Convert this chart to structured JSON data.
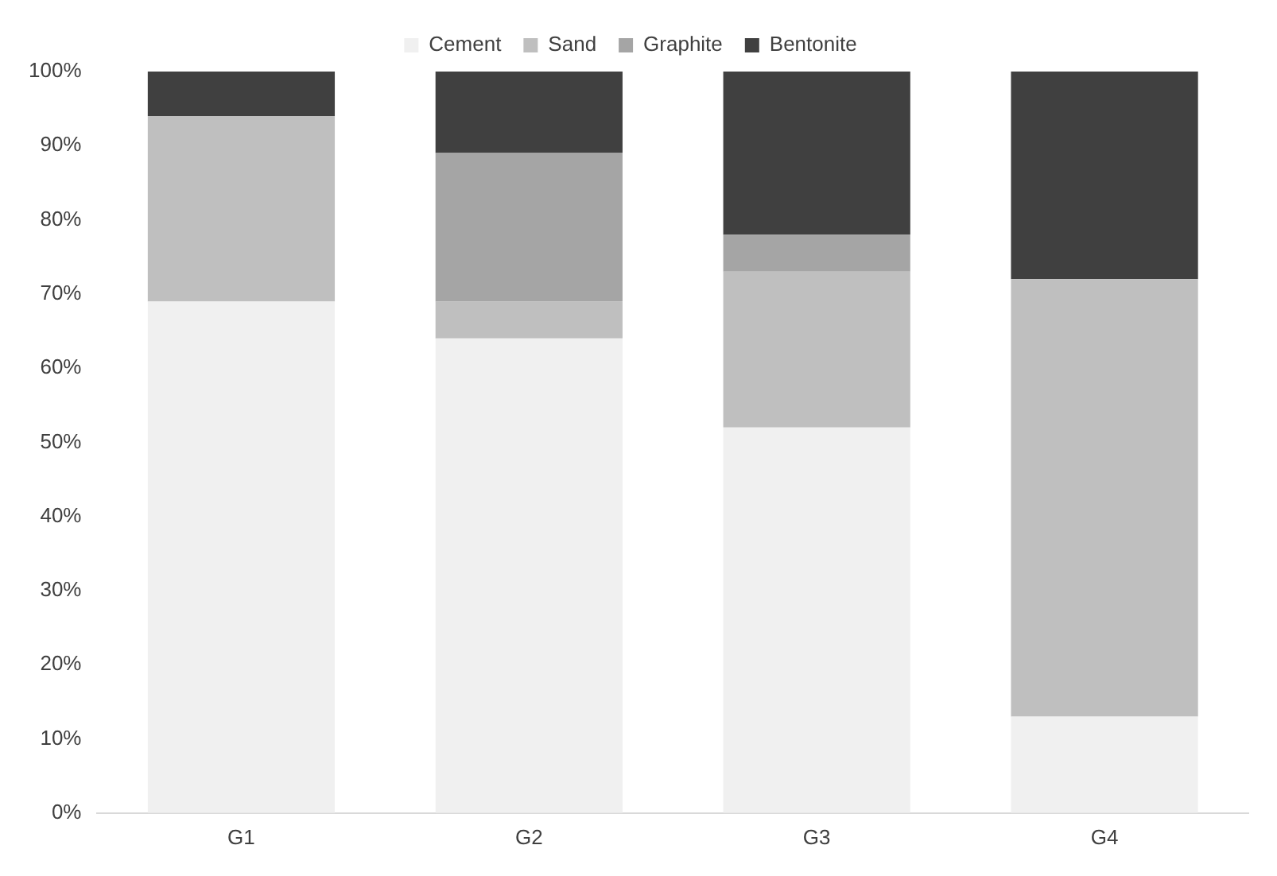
{
  "chart_data": {
    "type": "bar",
    "stacked": true,
    "categories": [
      "G1",
      "G2",
      "G3",
      "G4"
    ],
    "series": [
      {
        "name": "Cement",
        "color": "#f0f0f0",
        "values": [
          69,
          64,
          52,
          13
        ]
      },
      {
        "name": "Sand",
        "color": "#bfbfbf",
        "values": [
          25,
          5,
          21,
          59
        ]
      },
      {
        "name": "Graphite",
        "color": "#a5a5a5",
        "values": [
          0,
          20,
          5,
          0
        ]
      },
      {
        "name": "Bentonite",
        "color": "#404040",
        "values": [
          6,
          11,
          22,
          28
        ]
      }
    ],
    "ylim": [
      0,
      100
    ],
    "yticks": [
      {
        "value": 0,
        "label": "0%"
      },
      {
        "value": 10,
        "label": "10%"
      },
      {
        "value": 20,
        "label": "20%"
      },
      {
        "value": 30,
        "label": "30%"
      },
      {
        "value": 40,
        "label": "40%"
      },
      {
        "value": 50,
        "label": "50%"
      },
      {
        "value": 60,
        "label": "60%"
      },
      {
        "value": 70,
        "label": "70%"
      },
      {
        "value": 80,
        "label": "80%"
      },
      {
        "value": 90,
        "label": "90%"
      },
      {
        "value": 100,
        "label": "100%"
      }
    ],
    "grid": false,
    "legend": "top"
  }
}
